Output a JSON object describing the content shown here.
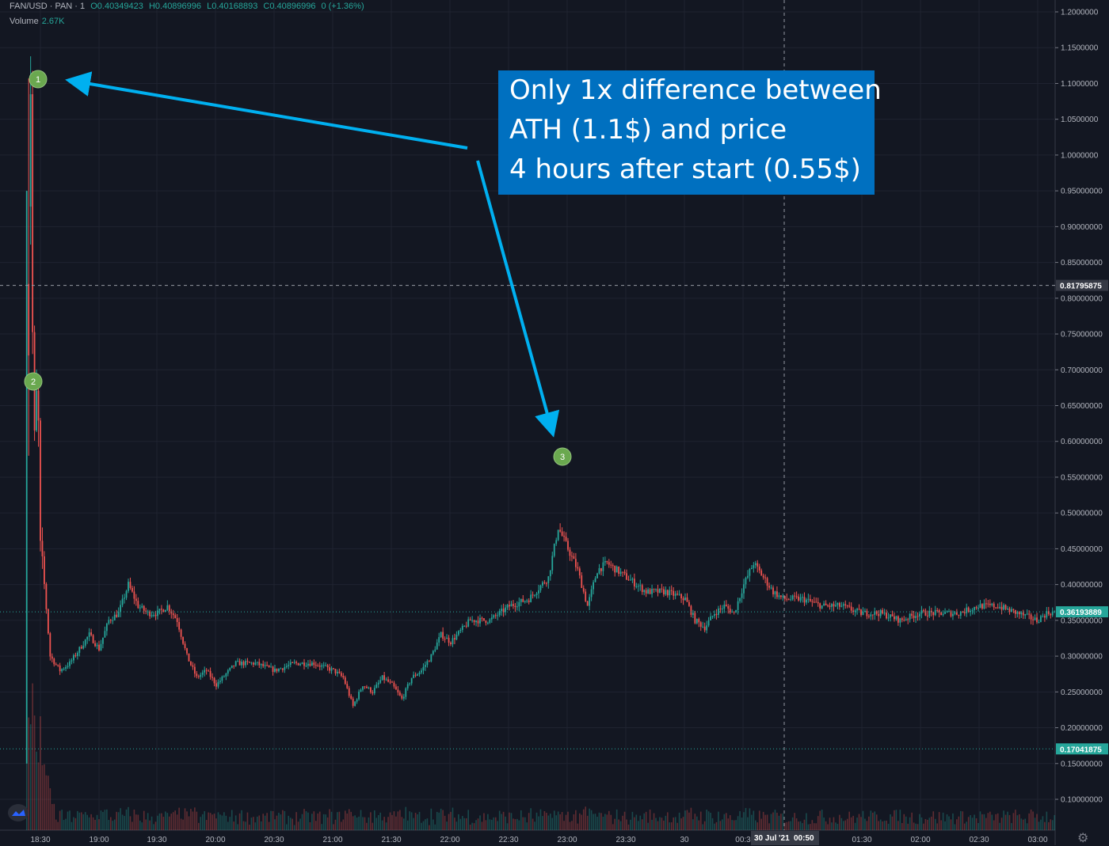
{
  "header": {
    "symbol": "FAN/USD · PAN · 1",
    "open": "O0.40349423",
    "high": "H0.40896996",
    "low": "L0.40168893",
    "close": "C0.40896996",
    "change": "0 (+1.36%)",
    "volume_label": "Volume",
    "volume_value": "2.67K"
  },
  "callout": {
    "lines": [
      "Only 1x difference between",
      "ATH (1.1$) and price",
      "4 hours after start (0.55$)"
    ]
  },
  "chart_data": {
    "type": "candlestick",
    "xlabel": "",
    "ylabel": "",
    "y_ticks": [
      "1.2000000",
      "1.1500000",
      "1.1000000",
      "1.0500000",
      "1.0000000",
      "0.95000000",
      "0.90000000",
      "0.85000000",
      "0.80000000",
      "0.75000000",
      "0.70000000",
      "0.65000000",
      "0.60000000",
      "0.55000000",
      "0.50000000",
      "0.45000000",
      "0.40000000",
      "0.35000000",
      "0.30000000",
      "0.25000000",
      "0.20000000",
      "0.15000000",
      "0.10000000"
    ],
    "ylim": [
      0.05,
      1.2
    ],
    "x_ticks": [
      "18:30",
      "19:00",
      "19:30",
      "20:00",
      "20:30",
      "21:00",
      "21:30",
      "22:00",
      "22:30",
      "23:00",
      "23:30",
      "30",
      "00:3",
      "01:30",
      "02:00",
      "02:30",
      "03:00"
    ],
    "crosshair": {
      "price_label": "0.81795875",
      "time_label": "30 Jul '21",
      "time_label2": "00:50"
    },
    "price_labels": [
      {
        "value": "0.36193889",
        "y": 0.36193889,
        "color": "#26a69a"
      },
      {
        "value": "0.17041875",
        "y": 0.17041875,
        "color": "#26a69a"
      }
    ],
    "price_path": [
      [
        "18:23",
        0.15
      ],
      [
        "18:24",
        0.95
      ],
      [
        "18:25",
        1.1
      ],
      [
        "18:26",
        0.75
      ],
      [
        "18:27",
        0.6
      ],
      [
        "18:28",
        0.66
      ],
      [
        "18:29",
        0.62
      ],
      [
        "18:30",
        0.45
      ],
      [
        "18:32",
        0.4
      ],
      [
        "18:35",
        0.3
      ],
      [
        "18:40",
        0.28
      ],
      [
        "18:45",
        0.29
      ],
      [
        "18:50",
        0.31
      ],
      [
        "18:55",
        0.33
      ],
      [
        "19:00",
        0.31
      ],
      [
        "19:05",
        0.35
      ],
      [
        "19:10",
        0.36
      ],
      [
        "19:15",
        0.4
      ],
      [
        "19:20",
        0.37
      ],
      [
        "19:25",
        0.36
      ],
      [
        "19:30",
        0.36
      ],
      [
        "19:35",
        0.37
      ],
      [
        "19:40",
        0.35
      ],
      [
        "19:45",
        0.3
      ],
      [
        "19:50",
        0.27
      ],
      [
        "19:55",
        0.28
      ],
      [
        "20:00",
        0.26
      ],
      [
        "20:10",
        0.29
      ],
      [
        "20:20",
        0.29
      ],
      [
        "20:30",
        0.28
      ],
      [
        "20:40",
        0.29
      ],
      [
        "20:50",
        0.29
      ],
      [
        "21:00",
        0.28
      ],
      [
        "21:05",
        0.27
      ],
      [
        "21:10",
        0.23
      ],
      [
        "21:15",
        0.26
      ],
      [
        "21:20",
        0.25
      ],
      [
        "21:25",
        0.27
      ],
      [
        "21:30",
        0.26
      ],
      [
        "21:35",
        0.24
      ],
      [
        "21:40",
        0.27
      ],
      [
        "21:45",
        0.28
      ],
      [
        "21:50",
        0.3
      ],
      [
        "21:55",
        0.33
      ],
      [
        "22:00",
        0.32
      ],
      [
        "22:10",
        0.35
      ],
      [
        "22:20",
        0.35
      ],
      [
        "22:30",
        0.37
      ],
      [
        "22:40",
        0.38
      ],
      [
        "22:50",
        0.41
      ],
      [
        "22:55",
        0.48
      ],
      [
        "23:00",
        0.45
      ],
      [
        "23:05",
        0.42
      ],
      [
        "23:10",
        0.37
      ],
      [
        "23:15",
        0.42
      ],
      [
        "23:20",
        0.43
      ],
      [
        "23:30",
        0.41
      ],
      [
        "23:40",
        0.39
      ],
      [
        "23:50",
        0.39
      ],
      [
        "00:00",
        0.38
      ],
      [
        "00:05",
        0.35
      ],
      [
        "00:10",
        0.34
      ],
      [
        "00:15",
        0.36
      ],
      [
        "00:20",
        0.37
      ],
      [
        "00:25",
        0.36
      ],
      [
        "00:30",
        0.4
      ],
      [
        "00:35",
        0.43
      ],
      [
        "00:40",
        0.41
      ],
      [
        "00:45",
        0.39
      ],
      [
        "00:50",
        0.38
      ],
      [
        "01:00",
        0.38
      ],
      [
        "01:10",
        0.37
      ],
      [
        "01:20",
        0.37
      ],
      [
        "01:30",
        0.36
      ],
      [
        "01:40",
        0.36
      ],
      [
        "01:50",
        0.35
      ],
      [
        "02:00",
        0.36
      ],
      [
        "02:10",
        0.36
      ],
      [
        "02:20",
        0.36
      ],
      [
        "02:30",
        0.37
      ],
      [
        "02:40",
        0.37
      ],
      [
        "02:50",
        0.36
      ],
      [
        "03:00",
        0.35
      ],
      [
        "03:05",
        0.36
      ],
      [
        "03:10",
        0.362
      ]
    ],
    "markers": [
      {
        "label": "1",
        "time": "18:25",
        "price": 1.11
      },
      {
        "label": "2",
        "time": "18:26",
        "price": 0.68
      },
      {
        "label": "3",
        "time": "23:00",
        "price": 0.57
      }
    ]
  }
}
